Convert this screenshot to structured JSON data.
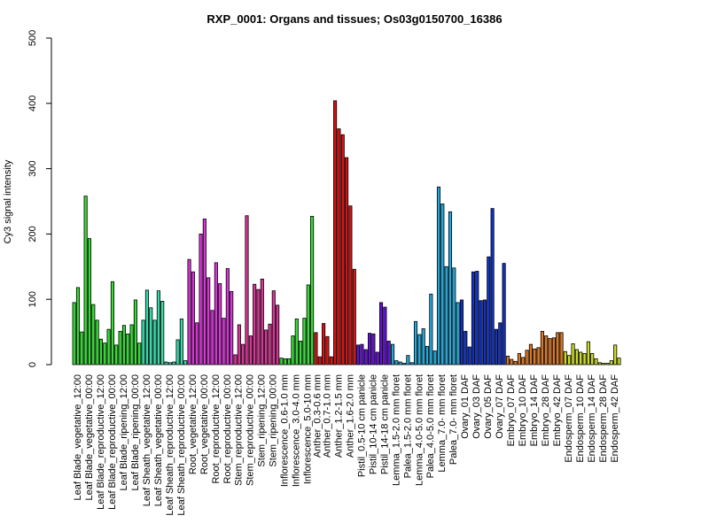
{
  "chart_data": {
    "type": "bar",
    "title": "RXP_0001: Organs and tissues; Os03g0150700_16386",
    "xlabel": "",
    "ylabel": "Cy3 signal intensity",
    "ylim": [
      0,
      500
    ],
    "yticks": [
      0,
      100,
      200,
      300,
      400,
      500
    ],
    "grid": false,
    "legend": "none",
    "groups": [
      {
        "label": "Leaf Blade_vegetative_12:00",
        "color": "#33dd33",
        "values": [
          95,
          118,
          50
        ]
      },
      {
        "label": "Leaf Blade_vegetative_00:00",
        "color": "#33dd33",
        "values": [
          258,
          193,
          92
        ]
      },
      {
        "label": "Leaf Blade_reproductive_12:00",
        "color": "#33dd33",
        "values": [
          68,
          39,
          33
        ]
      },
      {
        "label": "Leaf Blade_reproductive_00:00",
        "color": "#33dd33",
        "values": [
          54,
          127,
          30
        ]
      },
      {
        "label": "Leaf Blade_ripening_12:00",
        "color": "#33dd33",
        "values": [
          51,
          60,
          47
        ]
      },
      {
        "label": "Leaf Blade_ripening_00:00",
        "color": "#33dd33",
        "values": [
          61,
          99,
          33
        ]
      },
      {
        "label": "Leaf Sheath_vegetative_12:00",
        "color": "#33ddaa",
        "values": [
          68,
          114,
          87
        ]
      },
      {
        "label": "Leaf Sheath_vegetative_00:00",
        "color": "#33ddaa",
        "values": [
          68,
          113,
          97
        ]
      },
      {
        "label": "Leaf Sheath_reproductive_12:00",
        "color": "#33ddaa",
        "values": [
          4,
          3,
          4
        ]
      },
      {
        "label": "Leaf Sheath_reproductive_00:00",
        "color": "#33ddaa",
        "values": [
          38,
          70,
          6
        ]
      },
      {
        "label": "Root_vegetative_12:00",
        "color": "#dd33dd",
        "values": [
          161,
          142,
          64
        ]
      },
      {
        "label": "Root_vegetative_00:00",
        "color": "#dd33dd",
        "values": [
          200,
          223,
          133
        ]
      },
      {
        "label": "Root_reproductive_12:00",
        "color": "#dd33dd",
        "values": [
          83,
          156,
          124
        ]
      },
      {
        "label": "Root_reproductive_00:00",
        "color": "#dd33dd",
        "values": [
          71,
          147,
          112
        ]
      },
      {
        "label": "Stem_reproductive_12:00",
        "color": "#dd3399",
        "values": [
          15,
          61,
          31
        ]
      },
      {
        "label": "Stem_reproductive_00:00",
        "color": "#dd3399",
        "values": [
          228,
          44,
          123
        ]
      },
      {
        "label": "Stem_ripening_12:00",
        "color": "#dd3399",
        "values": [
          115,
          131,
          53
        ]
      },
      {
        "label": "Stem_ripening_00:00",
        "color": "#dd3399",
        "values": [
          62,
          113,
          91
        ]
      },
      {
        "label": "Inflorescence_0.6-1.0 mm",
        "color": "#33dd33",
        "values": [
          10,
          9,
          9
        ]
      },
      {
        "label": "Inflorescence_3.0-4.0 mm",
        "color": "#33dd33",
        "values": [
          44,
          70,
          36
        ]
      },
      {
        "label": "Inflorescence_5.0-10 mm",
        "color": "#33dd33",
        "values": [
          71,
          122,
          227
        ]
      },
      {
        "label": "Anther_0.3-0.6 mm",
        "color": "#dd1111",
        "values": [
          49,
          12
        ]
      },
      {
        "label": "Anther_0.7-1.0 mm",
        "color": "#dd1111",
        "values": [
          63,
          43,
          12
        ]
      },
      {
        "label": "Anther_1.2-1.5 mm",
        "color": "#dd1111",
        "values": [
          404,
          361,
          352
        ]
      },
      {
        "label": "Anther_1.6-2.0 mm",
        "color": "#dd1111",
        "values": [
          317,
          243,
          146
        ]
      },
      {
        "label": "Pistil_0.5-10 cm panicle",
        "color": "#6611dd",
        "values": [
          30,
          31,
          23
        ]
      },
      {
        "label": "Pistil_10-14 cm panicle",
        "color": "#6611dd",
        "values": [
          48,
          47,
          19
        ]
      },
      {
        "label": "Pistil_14-18 cm panicle",
        "color": "#6611dd",
        "values": [
          95,
          88,
          36
        ]
      },
      {
        "label": "Lemma_1.5-2.0 mm floret",
        "color": "#22aadd",
        "values": [
          31,
          6,
          4
        ]
      },
      {
        "label": "Palea_1.5-2.0 mm floret",
        "color": "#22aadd",
        "values": [
          2,
          14,
          3
        ]
      },
      {
        "label": "Lemma_4.0-5.0 mm floret",
        "color": "#22aadd",
        "values": [
          66,
          46,
          55
        ]
      },
      {
        "label": "Palea_4.0-5.0 mm floret",
        "color": "#22aadd",
        "values": [
          28,
          108,
          21
        ]
      },
      {
        "label": "Lemma_7.0- mm floret",
        "color": "#22aadd",
        "values": [
          272,
          246,
          150
        ]
      },
      {
        "label": "Palea_7.0- mm floret",
        "color": "#22aadd",
        "values": [
          234,
          148,
          95
        ]
      },
      {
        "label": "Ovary_01 DAF",
        "color": "#1133cc",
        "values": [
          99,
          51,
          27
        ]
      },
      {
        "label": "Ovary_03 DAF",
        "color": "#1133cc",
        "values": [
          142,
          143,
          98
        ]
      },
      {
        "label": "Ovary_05 DAF",
        "color": "#1133cc",
        "values": [
          99,
          165,
          239
        ]
      },
      {
        "label": "Ovary_07 DAF",
        "color": "#1133cc",
        "values": [
          54,
          64,
          155
        ]
      },
      {
        "label": "Embryo_07 DAF",
        "color": "#dd7722",
        "values": [
          13,
          8,
          5
        ]
      },
      {
        "label": "Embryo_10 DAF",
        "color": "#dd7722",
        "values": [
          17,
          11,
          22
        ]
      },
      {
        "label": "Embryo_14 DAF",
        "color": "#dd7722",
        "values": [
          31,
          24,
          26
        ]
      },
      {
        "label": "Embryo_28 DAF",
        "color": "#dd7722",
        "values": [
          51,
          44,
          40
        ]
      },
      {
        "label": "Embryo_42 DAF",
        "color": "#dd7722",
        "values": [
          41,
          49,
          49
        ]
      },
      {
        "label": "Endosperm_07 DAF",
        "color": "#ccdd22",
        "values": [
          20,
          14,
          32
        ]
      },
      {
        "label": "Endosperm_10 DAF",
        "color": "#ccdd22",
        "values": [
          23,
          19,
          17
        ]
      },
      {
        "label": "Endosperm_14 DAF",
        "color": "#ccdd22",
        "values": [
          35,
          17,
          9
        ]
      },
      {
        "label": "Endosperm_28 DAF",
        "color": "#ccdd22",
        "values": [
          3,
          2,
          2
        ]
      },
      {
        "label": "Endosperm_42 DAF",
        "color": "#ccdd22",
        "values": [
          6,
          30,
          10
        ]
      }
    ]
  }
}
